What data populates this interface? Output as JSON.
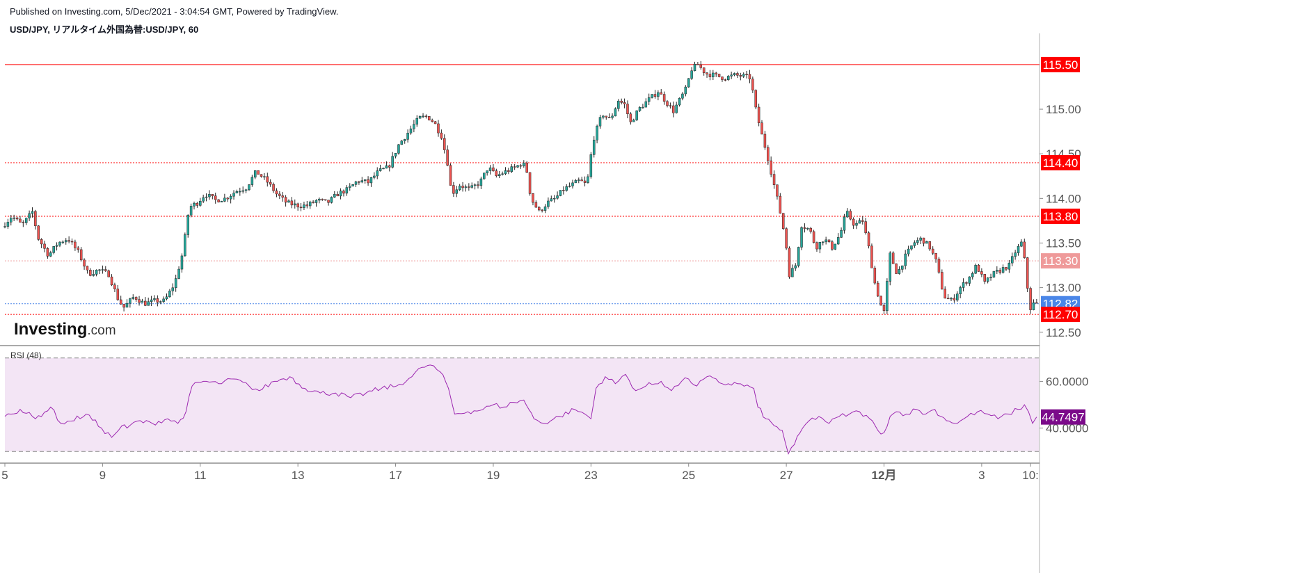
{
  "header": {
    "published": "Published on Investing.com, 5/Dec/2021 - 3:04:54 GMT, Powered by TradingView.",
    "symbol": "USD/JPY, リアルタイム外国為替:USD/JPY, 60"
  },
  "watermark": {
    "brand": "Investing",
    "suffix": ".com"
  },
  "colors": {
    "up": "#26a69a",
    "down": "#ef5350",
    "level": "#ff0000",
    "level_light": "#ef9a9a",
    "current": "#4a86e8",
    "rsi": "#9c27b0",
    "rsi_band": "#f3e5f5"
  },
  "chart_data": [
    {
      "type": "candlestick",
      "interval": "60",
      "ylim": [
        112.35,
        115.85
      ],
      "y_ticks": [
        "115.00",
        "114.50",
        "114.00",
        "113.50",
        "113.00",
        "112.50"
      ],
      "x_ticks": [
        {
          "label": "5",
          "t": 0
        },
        {
          "label": "9",
          "t": 96
        },
        {
          "label": "11",
          "t": 192
        },
        {
          "label": "13",
          "t": 288
        },
        {
          "label": "17",
          "t": 384
        },
        {
          "label": "19",
          "t": 480
        },
        {
          "label": "23",
          "t": 576
        },
        {
          "label": "25",
          "t": 672
        },
        {
          "label": "27",
          "t": 768
        },
        {
          "label": "12月",
          "t": 864,
          "bold": true
        },
        {
          "label": "3",
          "t": 960
        },
        {
          "label": "10:",
          "t": 1008
        }
      ],
      "t_range": [
        0,
        1010
      ],
      "levels": [
        {
          "value": 115.5,
          "label": "115.50",
          "style": "solid",
          "kind": "level"
        },
        {
          "value": 114.4,
          "label": "114.40",
          "style": "dotted",
          "kind": "level"
        },
        {
          "value": 113.8,
          "label": "113.80",
          "style": "dotted",
          "kind": "level"
        },
        {
          "value": 113.3,
          "label": "113.30",
          "style": "dotted",
          "kind": "level_light"
        },
        {
          "value": 112.82,
          "label": "112.82",
          "style": "dotted",
          "kind": "current"
        },
        {
          "value": 112.7,
          "label": "112.70",
          "style": "dotted",
          "kind": "level"
        }
      ],
      "price_path": [
        [
          0,
          113.68
        ],
        [
          10,
          113.8
        ],
        [
          20,
          113.7
        ],
        [
          30,
          113.85
        ],
        [
          36,
          113.55
        ],
        [
          46,
          113.36
        ],
        [
          55,
          113.5
        ],
        [
          65,
          113.55
        ],
        [
          75,
          113.4
        ],
        [
          85,
          113.15
        ],
        [
          95,
          113.2
        ],
        [
          105,
          113.15
        ],
        [
          115,
          112.85
        ],
        [
          120,
          112.78
        ],
        [
          130,
          112.9
        ],
        [
          140,
          112.82
        ],
        [
          150,
          112.85
        ],
        [
          160,
          112.85
        ],
        [
          170,
          113.05
        ],
        [
          178,
          113.4
        ],
        [
          184,
          113.9
        ],
        [
          192,
          113.95
        ],
        [
          200,
          114.05
        ],
        [
          210,
          113.98
        ],
        [
          220,
          114.0
        ],
        [
          230,
          114.08
        ],
        [
          240,
          114.12
        ],
        [
          250,
          114.3
        ],
        [
          260,
          114.2
        ],
        [
          270,
          114.05
        ],
        [
          280,
          113.95
        ],
        [
          290,
          113.92
        ],
        [
          300,
          113.92
        ],
        [
          310,
          113.98
        ],
        [
          320,
          113.95
        ],
        [
          330,
          114.05
        ],
        [
          340,
          114.1
        ],
        [
          350,
          114.2
        ],
        [
          360,
          114.18
        ],
        [
          370,
          114.3
        ],
        [
          380,
          114.35
        ],
        [
          390,
          114.6
        ],
        [
          400,
          114.75
        ],
        [
          410,
          114.9
        ],
        [
          418,
          114.92
        ],
        [
          425,
          114.85
        ],
        [
          432,
          114.7
        ],
        [
          438,
          114.4
        ],
        [
          442,
          114.05
        ],
        [
          450,
          114.15
        ],
        [
          460,
          114.1
        ],
        [
          470,
          114.18
        ],
        [
          478,
          114.35
        ],
        [
          486,
          114.25
        ],
        [
          495,
          114.3
        ],
        [
          505,
          114.35
        ],
        [
          512,
          114.4
        ],
        [
          516,
          114.3
        ],
        [
          520,
          114.0
        ],
        [
          528,
          113.85
        ],
        [
          536,
          113.95
        ],
        [
          544,
          114.0
        ],
        [
          552,
          114.1
        ],
        [
          560,
          114.15
        ],
        [
          568,
          114.2
        ],
        [
          575,
          114.15
        ],
        [
          581,
          114.65
        ],
        [
          590,
          114.95
        ],
        [
          598,
          114.88
        ],
        [
          606,
          115.1
        ],
        [
          612,
          115.05
        ],
        [
          618,
          114.85
        ],
        [
          626,
          115.0
        ],
        [
          635,
          115.1
        ],
        [
          645,
          115.2
        ],
        [
          653,
          115.08
        ],
        [
          660,
          114.98
        ],
        [
          666,
          115.1
        ],
        [
          672,
          115.22
        ],
        [
          678,
          115.45
        ],
        [
          684,
          115.5
        ],
        [
          692,
          115.4
        ],
        [
          700,
          115.38
        ],
        [
          710,
          115.35
        ],
        [
          720,
          115.38
        ],
        [
          730,
          115.37
        ],
        [
          736,
          115.35
        ],
        [
          740,
          115.05
        ],
        [
          746,
          114.75
        ],
        [
          752,
          114.5
        ],
        [
          758,
          114.2
        ],
        [
          764,
          113.9
        ],
        [
          770,
          113.55
        ],
        [
          774,
          113.15
        ],
        [
          780,
          113.25
        ],
        [
          786,
          113.7
        ],
        [
          794,
          113.65
        ],
        [
          800,
          113.45
        ],
        [
          808,
          113.55
        ],
        [
          816,
          113.45
        ],
        [
          824,
          113.6
        ],
        [
          830,
          113.85
        ],
        [
          838,
          113.7
        ],
        [
          846,
          113.75
        ],
        [
          852,
          113.45
        ],
        [
          858,
          113.05
        ],
        [
          864,
          112.8
        ],
        [
          868,
          112.7
        ],
        [
          872,
          113.4
        ],
        [
          880,
          113.15
        ],
        [
          888,
          113.35
        ],
        [
          896,
          113.5
        ],
        [
          904,
          113.55
        ],
        [
          912,
          113.45
        ],
        [
          918,
          113.3
        ],
        [
          926,
          112.9
        ],
        [
          934,
          112.85
        ],
        [
          942,
          113.0
        ],
        [
          950,
          113.1
        ],
        [
          958,
          113.25
        ],
        [
          966,
          113.05
        ],
        [
          974,
          113.15
        ],
        [
          982,
          113.2
        ],
        [
          990,
          113.25
        ],
        [
          996,
          113.4
        ],
        [
          1002,
          113.5
        ],
        [
          1006,
          113.25
        ],
        [
          1010,
          112.75
        ],
        [
          1014,
          112.82
        ]
      ]
    },
    {
      "type": "line",
      "title": "RSI (48)",
      "ylim": [
        25,
        75
      ],
      "y_ticks": [
        "60.0000",
        "40.0000"
      ],
      "bands": [
        70,
        30
      ],
      "last_label": "44.7497",
      "last_value": 44.7497,
      "x": [
        0,
        15,
        30,
        45,
        55,
        65,
        80,
        95,
        105,
        115,
        120,
        130,
        145,
        160,
        170,
        178,
        184,
        195,
        210,
        225,
        240,
        250,
        265,
        280,
        295,
        310,
        325,
        340,
        355,
        370,
        385,
        400,
        410,
        418,
        428,
        436,
        442,
        455,
        470,
        480,
        490,
        500,
        510,
        515,
        520,
        530,
        545,
        560,
        570,
        576,
        581,
        590,
        600,
        610,
        620,
        630,
        645,
        655,
        665,
        672,
        680,
        690,
        705,
        720,
        736,
        740,
        748,
        756,
        764,
        770,
        776,
        784,
        790,
        800,
        810,
        820,
        830,
        840,
        850,
        858,
        864,
        870,
        876,
        886,
        896,
        905,
        914,
        920,
        928,
        936,
        946,
        956,
        966,
        976,
        986,
        996,
        1002,
        1006,
        1010,
        1014
      ],
      "values": [
        45,
        48,
        44,
        49,
        42,
        43,
        46,
        40,
        36,
        41,
        40,
        43,
        42,
        44,
        42,
        47,
        58,
        60,
        59,
        61,
        58,
        56,
        60,
        62,
        57,
        55,
        55,
        53,
        55,
        57,
        58,
        62,
        66,
        67,
        64,
        57,
        46,
        47,
        48,
        50,
        49,
        51,
        52,
        48,
        44,
        42,
        45,
        48,
        46,
        44,
        57,
        62,
        59,
        63,
        56,
        58,
        60,
        56,
        60,
        61,
        58,
        62,
        59,
        59,
        57,
        49,
        44,
        41,
        39,
        29,
        33,
        40,
        43,
        45,
        42,
        45,
        46,
        47,
        44,
        39,
        38,
        45,
        47,
        46,
        48,
        46,
        48,
        45,
        43,
        42,
        45,
        47,
        46,
        44,
        46,
        48,
        50,
        47,
        42,
        44.7497
      ]
    }
  ]
}
